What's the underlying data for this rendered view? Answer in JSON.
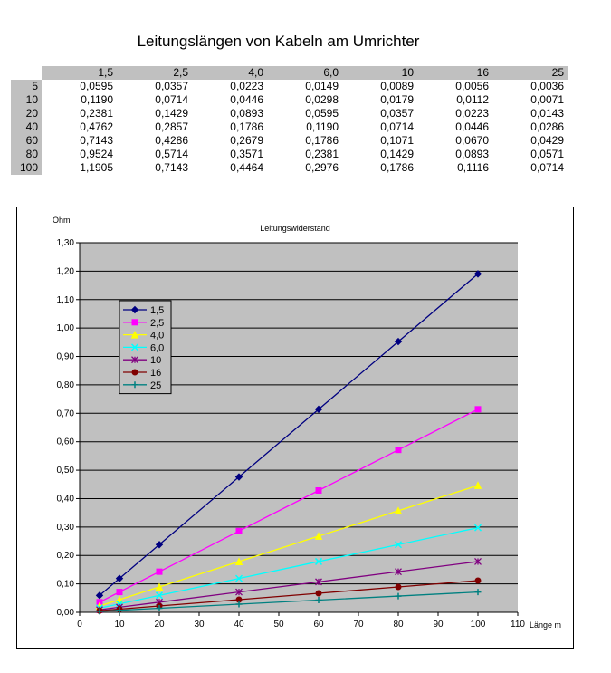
{
  "title": "Leitungslängen von Kabeln  am Umrichter",
  "table": {
    "columns": [
      "1,5",
      "2,5",
      "4,0",
      "6,0",
      "10",
      "16",
      "25"
    ],
    "rows": [
      {
        "length": "5",
        "values": [
          "0,0595",
          "0,0357",
          "0,0223",
          "0,0149",
          "0,0089",
          "0,0056",
          "0,0036"
        ]
      },
      {
        "length": "10",
        "values": [
          "0,1190",
          "0,0714",
          "0,0446",
          "0,0298",
          "0,0179",
          "0,0112",
          "0,0071"
        ]
      },
      {
        "length": "20",
        "values": [
          "0,2381",
          "0,1429",
          "0,0893",
          "0,0595",
          "0,0357",
          "0,0223",
          "0,0143"
        ]
      },
      {
        "length": "40",
        "values": [
          "0,4762",
          "0,2857",
          "0,1786",
          "0,1190",
          "0,0714",
          "0,0446",
          "0,0286"
        ]
      },
      {
        "length": "60",
        "values": [
          "0,7143",
          "0,4286",
          "0,2679",
          "0,1786",
          "0,1071",
          "0,0670",
          "0,0429"
        ]
      },
      {
        "length": "80",
        "values": [
          "0,9524",
          "0,5714",
          "0,3571",
          "0,2381",
          "0,1429",
          "0,0893",
          "0,0571"
        ]
      },
      {
        "length": "100",
        "values": [
          "1,1905",
          "0,7143",
          "0,4464",
          "0,2976",
          "0,1786",
          "0,1116",
          "0,0714"
        ]
      }
    ]
  },
  "chart_data": {
    "type": "line",
    "title": "Leitungswiderstand",
    "ylabel": "Ohm",
    "xlabel": "Länge m",
    "xlim": [
      0,
      110
    ],
    "ylim": [
      0,
      1.3
    ],
    "grid": true,
    "legend_position": "top-left",
    "x": [
      5,
      10,
      20,
      40,
      60,
      80,
      100
    ],
    "x_ticks": [
      "0",
      "10",
      "20",
      "30",
      "40",
      "50",
      "60",
      "70",
      "80",
      "90",
      "100",
      "110"
    ],
    "y_ticks": [
      "0,00",
      "0,10",
      "0,20",
      "0,30",
      "0,40",
      "0,50",
      "0,60",
      "0,70",
      "0,80",
      "0,90",
      "1,00",
      "1,10",
      "1,20",
      "1,30"
    ],
    "series": [
      {
        "name": "1,5",
        "color": "#000080",
        "marker": "diamond",
        "values": [
          0.0595,
          0.119,
          0.2381,
          0.4762,
          0.7143,
          0.9524,
          1.1905
        ]
      },
      {
        "name": "2,5",
        "color": "#ff00ff",
        "marker": "square",
        "values": [
          0.0357,
          0.0714,
          0.1429,
          0.2857,
          0.4286,
          0.5714,
          0.7143
        ]
      },
      {
        "name": "4,0",
        "color": "#ffff00",
        "marker": "triangle",
        "values": [
          0.0223,
          0.0446,
          0.0893,
          0.1786,
          0.2679,
          0.3571,
          0.4464
        ]
      },
      {
        "name": "6,0",
        "color": "#00ffff",
        "marker": "x",
        "values": [
          0.0149,
          0.0298,
          0.0595,
          0.119,
          0.1786,
          0.2381,
          0.2976
        ]
      },
      {
        "name": "10",
        "color": "#800080",
        "marker": "star",
        "values": [
          0.0089,
          0.0179,
          0.0357,
          0.0714,
          0.1071,
          0.1429,
          0.1786
        ]
      },
      {
        "name": "16",
        "color": "#800000",
        "marker": "circle",
        "values": [
          0.0056,
          0.0112,
          0.0223,
          0.0446,
          0.067,
          0.0893,
          0.1116
        ]
      },
      {
        "name": "25",
        "color": "#008080",
        "marker": "plus",
        "values": [
          0.0036,
          0.0071,
          0.0143,
          0.0286,
          0.0429,
          0.0571,
          0.0714
        ]
      }
    ]
  }
}
